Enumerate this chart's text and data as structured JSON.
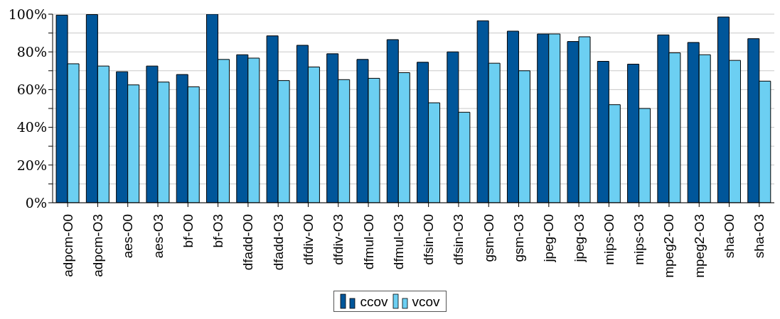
{
  "chart_data": {
    "type": "bar",
    "categories": [
      "adpcm-O0",
      "adpcm-O3",
      "aes-O0",
      "aes-O3",
      "bf-O0",
      "bf-O3",
      "dfadd-O0",
      "dfadd-O3",
      "dfdiv-O0",
      "dfdiv-O3",
      "dfmul-O0",
      "dfmul-O3",
      "dfsin-O0",
      "dfsin-O3",
      "gsm-O0",
      "gsm-O3",
      "jpeg-O0",
      "jpeg-O3",
      "mips-O0",
      "mips-O3",
      "mpeg2-O0",
      "mpeg2-O3",
      "sha-O0",
      "sha-O3"
    ],
    "series": [
      {
        "name": "ccov",
        "color": "#00569a",
        "values": [
          99.5,
          99.8,
          69.5,
          72.5,
          68,
          100,
          78.5,
          88.5,
          83.5,
          79,
          76,
          86.5,
          74.5,
          80,
          96.5,
          91,
          89.5,
          85.5,
          75,
          73.5,
          89,
          85,
          98.5,
          87
        ]
      },
      {
        "name": "vcov",
        "color": "#6ccff2",
        "values": [
          73.7,
          72.5,
          62.5,
          64,
          61.5,
          76,
          76.7,
          64.8,
          72,
          65.3,
          66,
          69,
          53,
          48,
          74,
          70,
          89.5,
          88,
          52,
          50,
          79.5,
          78.5,
          75.5,
          64.5
        ]
      }
    ],
    "ylim": [
      0,
      100
    ],
    "yticks": [
      {
        "value": 0,
        "label": "0%"
      },
      {
        "value": 10,
        "label": null
      },
      {
        "value": 20,
        "label": "20%"
      },
      {
        "value": 30,
        "label": null
      },
      {
        "value": 40,
        "label": "40%"
      },
      {
        "value": 50,
        "label": null
      },
      {
        "value": 60,
        "label": "60%"
      },
      {
        "value": 70,
        "label": null
      },
      {
        "value": 80,
        "label": "80%"
      },
      {
        "value": 90,
        "label": null
      },
      {
        "value": 100,
        "label": "100%"
      }
    ],
    "grid": "y",
    "legend": "bottom"
  }
}
